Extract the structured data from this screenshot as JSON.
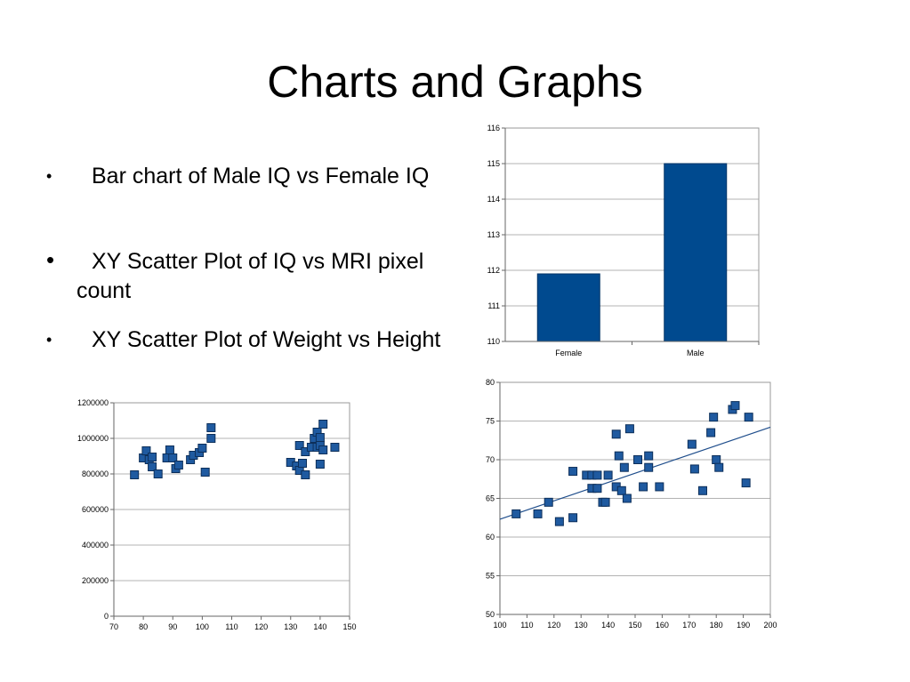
{
  "slide": {
    "title": "Charts and Graphs",
    "bullets": [
      {
        "text": "Bar chart of Male IQ vs Female IQ"
      },
      {
        "text": "XY Scatter Plot of IQ vs MRI pixel count"
      },
      {
        "text": "XY Scatter Plot of Weight vs Height"
      }
    ]
  },
  "colors": {
    "bar_fill": "#004a8f",
    "marker_fill": "#1f5aa0",
    "trendline": "#1f4e8c",
    "grid": "#b3b3b3"
  },
  "chart_data": [
    {
      "type": "bar",
      "categories": [
        "Female",
        "Male"
      ],
      "values": [
        111.9,
        115
      ],
      "ylim": [
        110,
        116
      ],
      "yticks": [
        110,
        111,
        112,
        113,
        114,
        115,
        116
      ],
      "grid": true,
      "legend": "none"
    },
    {
      "type": "scatter",
      "xlim": [
        70,
        150
      ],
      "ylim": [
        0,
        1200000
      ],
      "xticks": [
        70,
        80,
        90,
        100,
        110,
        120,
        130,
        140,
        150
      ],
      "yticks": [
        0,
        200000,
        400000,
        600000,
        800000,
        1000000,
        1200000
      ],
      "grid": true,
      "legend": "none",
      "points": [
        [
          77,
          795000
        ],
        [
          80,
          890000
        ],
        [
          81,
          930000
        ],
        [
          82,
          880000
        ],
        [
          83,
          895000
        ],
        [
          83,
          840000
        ],
        [
          85,
          800000
        ],
        [
          88,
          890000
        ],
        [
          89,
          935000
        ],
        [
          90,
          890000
        ],
        [
          91,
          830000
        ],
        [
          92,
          850000
        ],
        [
          96,
          880000
        ],
        [
          97,
          905000
        ],
        [
          99,
          920000
        ],
        [
          100,
          945000
        ],
        [
          101,
          810000
        ],
        [
          103,
          1000000
        ],
        [
          103,
          1060000
        ],
        [
          130,
          865000
        ],
        [
          132,
          845000
        ],
        [
          133,
          960000
        ],
        [
          133,
          820000
        ],
        [
          134,
          860000
        ],
        [
          135,
          925000
        ],
        [
          135,
          795000
        ],
        [
          137,
          950000
        ],
        [
          138,
          1000000
        ],
        [
          139,
          1035000
        ],
        [
          139,
          950000
        ],
        [
          140,
          855000
        ],
        [
          140,
          1005000
        ],
        [
          140,
          960000
        ],
        [
          141,
          1080000
        ],
        [
          141,
          935000
        ],
        [
          145,
          950000
        ]
      ]
    },
    {
      "type": "scatter",
      "xlim": [
        100,
        200
      ],
      "ylim": [
        50,
        80
      ],
      "xticks": [
        100,
        110,
        120,
        130,
        140,
        150,
        160,
        170,
        180,
        190,
        200
      ],
      "yticks": [
        50,
        55,
        60,
        65,
        70,
        75,
        80
      ],
      "grid": true,
      "legend": "none",
      "trendline": [
        [
          100,
          62.3
        ],
        [
          200,
          74.2
        ]
      ],
      "points": [
        [
          106,
          63
        ],
        [
          114,
          63
        ],
        [
          118,
          64.5
        ],
        [
          122,
          62
        ],
        [
          127,
          62.5
        ],
        [
          127,
          68.5
        ],
        [
          132,
          68
        ],
        [
          134,
          66.3
        ],
        [
          134,
          68
        ],
        [
          136,
          68
        ],
        [
          136,
          66.3
        ],
        [
          138,
          64.5
        ],
        [
          139,
          64.5
        ],
        [
          140,
          68
        ],
        [
          143,
          66.5
        ],
        [
          143,
          73.3
        ],
        [
          144,
          70.5
        ],
        [
          145,
          66
        ],
        [
          146,
          69
        ],
        [
          147,
          65
        ],
        [
          148,
          74
        ],
        [
          151,
          70
        ],
        [
          153,
          66.5
        ],
        [
          155,
          70.5
        ],
        [
          155,
          69
        ],
        [
          159,
          66.5
        ],
        [
          171,
          72
        ],
        [
          172,
          68.8
        ],
        [
          175,
          66
        ],
        [
          178,
          73.5
        ],
        [
          179,
          75.5
        ],
        [
          180,
          70
        ],
        [
          181,
          69
        ],
        [
          186,
          76.5
        ],
        [
          187,
          77
        ],
        [
          191,
          67
        ],
        [
          192,
          75.5
        ]
      ]
    }
  ]
}
